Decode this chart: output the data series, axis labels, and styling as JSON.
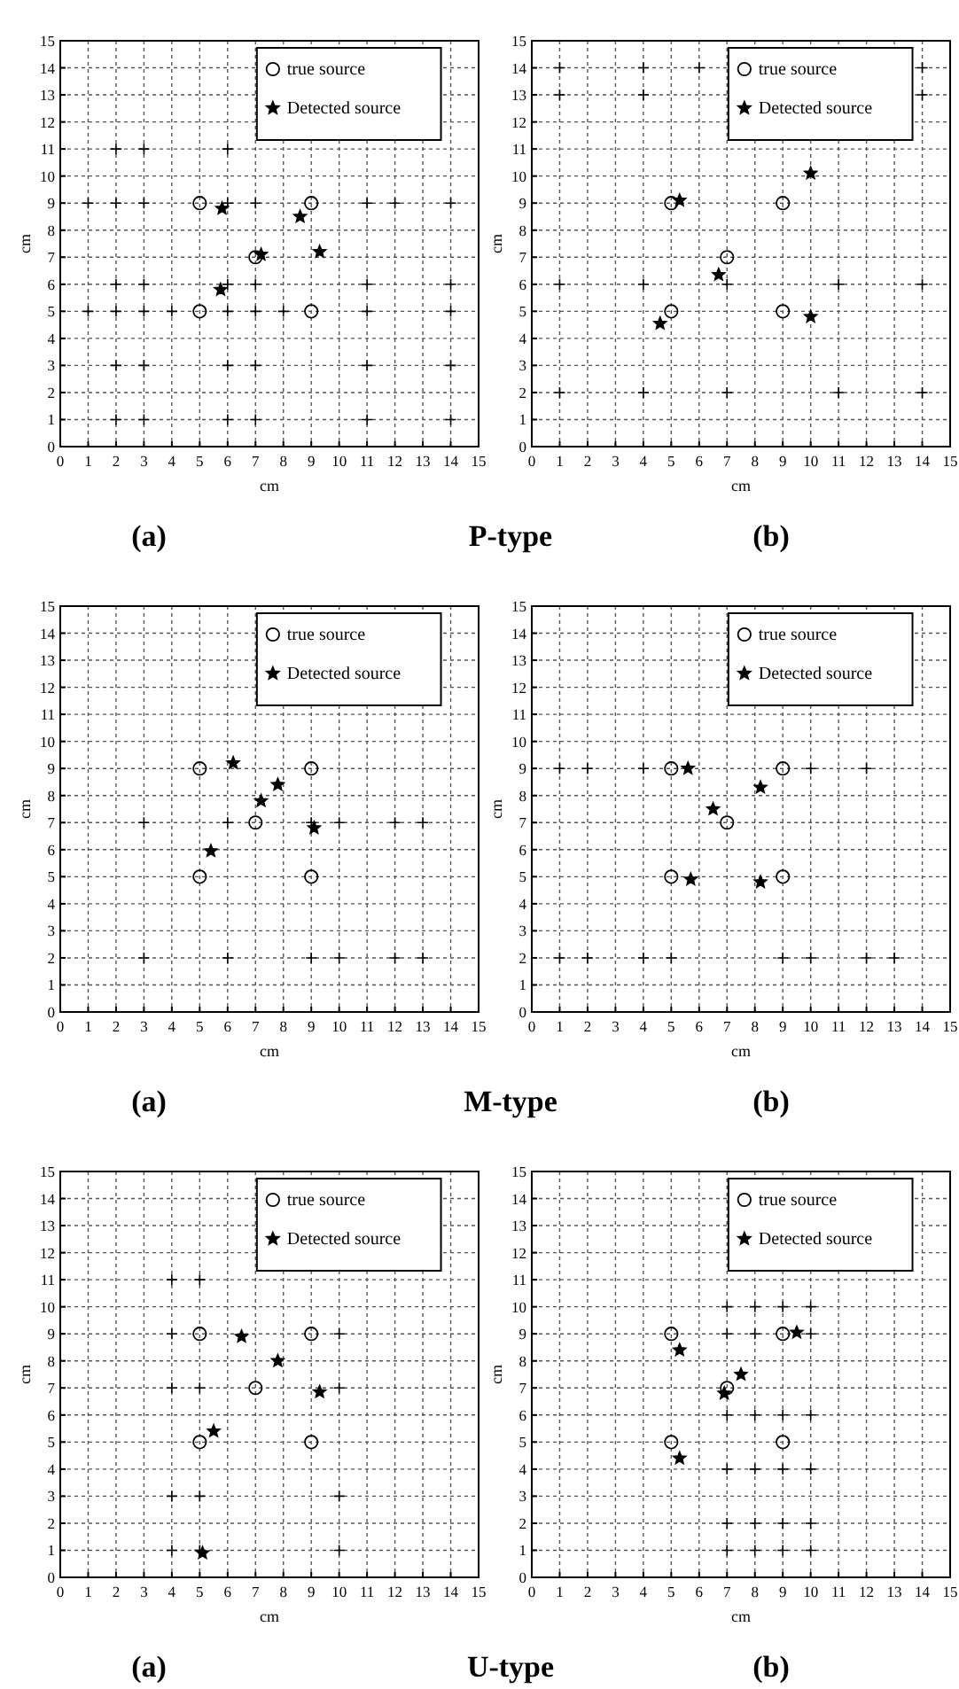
{
  "chart_data": [
    {
      "type": "scatter",
      "title": "(a)",
      "xlabel": "cm",
      "ylabel": "cm",
      "annotations": [
        "P-type"
      ],
      "xlim": [
        0,
        15
      ],
      "ylim": [
        0,
        15
      ],
      "xticks": [
        0,
        1,
        2,
        3,
        4,
        5,
        6,
        7,
        8,
        9,
        10,
        11,
        12,
        13,
        14,
        15
      ],
      "yticks": [
        0,
        1,
        2,
        3,
        4,
        5,
        6,
        7,
        8,
        9,
        10,
        11,
        12,
        13,
        14,
        15
      ],
      "grid": true,
      "legend": "top right",
      "series": [
        {
          "name": "true source",
          "color": "#000000",
          "marker": "circle",
          "x": [
            5,
            9,
            7,
            5,
            9
          ],
          "values": [
            9,
            9,
            7,
            5,
            5
          ]
        },
        {
          "name": "Detected source",
          "color": "#000000",
          "marker": "star",
          "x": [
            5.8,
            8.6,
            7.2,
            9.3,
            5.75
          ],
          "values": [
            8.8,
            8.5,
            7.1,
            7.2,
            5.8
          ]
        },
        {
          "color": "#000000",
          "marker": "cross",
          "x": [
            2,
            3,
            6,
            1,
            2,
            3,
            6,
            7,
            11,
            12,
            14,
            2,
            3,
            6,
            7,
            11,
            14,
            1,
            2,
            3,
            4,
            6,
            7,
            8,
            11,
            14,
            2,
            3,
            6,
            7,
            11,
            14,
            2,
            3,
            6,
            7,
            11,
            14
          ],
          "values": [
            11,
            11,
            11,
            9,
            9,
            9,
            9,
            9,
            9,
            9,
            9,
            6,
            6,
            6,
            6,
            6,
            6,
            5,
            5,
            5,
            5,
            5,
            5,
            5,
            5,
            5,
            3,
            3,
            3,
            3,
            3,
            3,
            1,
            1,
            1,
            1,
            1,
            1
          ]
        }
      ]
    },
    {
      "type": "scatter",
      "title": "(b)",
      "xlabel": "cm",
      "ylabel": "cm",
      "xlim": [
        0,
        15
      ],
      "ylim": [
        0,
        15
      ],
      "xticks": [
        0,
        1,
        2,
        3,
        4,
        5,
        6,
        7,
        8,
        9,
        10,
        11,
        12,
        13,
        14,
        15
      ],
      "yticks": [
        0,
        1,
        2,
        3,
        4,
        5,
        6,
        7,
        8,
        9,
        10,
        11,
        12,
        13,
        14,
        15
      ],
      "grid": true,
      "legend": "top right",
      "series": [
        {
          "name": "true source",
          "color": "#000000",
          "marker": "circle",
          "x": [
            5,
            9,
            7,
            5,
            9
          ],
          "values": [
            9,
            9,
            7,
            5,
            5
          ]
        },
        {
          "name": "Detected source",
          "color": "#000000",
          "marker": "star",
          "x": [
            5.3,
            10,
            6.7,
            4.6,
            10
          ],
          "values": [
            9.1,
            10.1,
            6.35,
            4.55,
            4.8
          ]
        },
        {
          "color": "#000000",
          "marker": "cross",
          "x": [
            1,
            4,
            6,
            14,
            1,
            4,
            14,
            1,
            4,
            7,
            11,
            14,
            1,
            4,
            7,
            11,
            14
          ],
          "values": [
            14,
            14,
            14,
            14,
            13,
            13,
            13,
            6,
            6,
            6,
            6,
            6,
            2,
            2,
            2,
            2,
            2
          ]
        }
      ]
    },
    {
      "type": "scatter",
      "title": "(a)",
      "xlabel": "cm",
      "ylabel": "cm",
      "annotations": [
        "M-type"
      ],
      "xlim": [
        0,
        15
      ],
      "ylim": [
        0,
        15
      ],
      "xticks": [
        0,
        1,
        2,
        3,
        4,
        5,
        6,
        7,
        8,
        9,
        10,
        11,
        12,
        13,
        14,
        15
      ],
      "yticks": [
        0,
        1,
        2,
        3,
        4,
        5,
        6,
        7,
        8,
        9,
        10,
        11,
        12,
        13,
        14,
        15
      ],
      "grid": true,
      "legend": "top right",
      "series": [
        {
          "name": "true source",
          "color": "#000000",
          "marker": "circle",
          "x": [
            5,
            9,
            7,
            5,
            9
          ],
          "values": [
            9,
            9,
            7,
            5,
            5
          ]
        },
        {
          "name": "Detected source",
          "color": "#000000",
          "marker": "star",
          "x": [
            6.2,
            7.8,
            7.2,
            9.1,
            5.4
          ],
          "values": [
            9.2,
            8.4,
            7.8,
            6.8,
            5.95
          ]
        },
        {
          "color": "#000000",
          "marker": "cross",
          "x": [
            3,
            6,
            9,
            10,
            12,
            13,
            3,
            6,
            9,
            10,
            12,
            13
          ],
          "values": [
            7,
            7,
            7,
            7,
            7,
            7,
            2,
            2,
            2,
            2,
            2,
            2
          ]
        }
      ]
    },
    {
      "type": "scatter",
      "title": "(b)",
      "xlabel": "cm",
      "ylabel": "cm",
      "xlim": [
        0,
        15
      ],
      "ylim": [
        0,
        15
      ],
      "xticks": [
        0,
        1,
        2,
        3,
        4,
        5,
        6,
        7,
        8,
        9,
        10,
        11,
        12,
        13,
        14,
        15
      ],
      "yticks": [
        0,
        1,
        2,
        3,
        4,
        5,
        6,
        7,
        8,
        9,
        10,
        11,
        12,
        13,
        14,
        15
      ],
      "grid": true,
      "legend": "top right",
      "series": [
        {
          "name": "true source",
          "color": "#000000",
          "marker": "circle",
          "x": [
            5,
            9,
            7,
            5,
            9
          ],
          "values": [
            9,
            9,
            7,
            5,
            5
          ]
        },
        {
          "name": "Detected source",
          "color": "#000000",
          "marker": "star",
          "x": [
            5.6,
            8.2,
            6.5,
            5.7,
            8.2
          ],
          "values": [
            9,
            8.3,
            7.5,
            4.9,
            4.8
          ]
        },
        {
          "color": "#000000",
          "marker": "cross",
          "x": [
            1,
            2,
            4,
            10,
            12,
            1,
            2,
            4,
            5,
            9,
            10,
            12,
            13
          ],
          "values": [
            9,
            9,
            9,
            9,
            9,
            2,
            2,
            2,
            2,
            2,
            2,
            2,
            2
          ]
        }
      ]
    },
    {
      "type": "scatter",
      "title": "(a)",
      "xlabel": "cm",
      "ylabel": "cm",
      "annotations": [
        "U-type"
      ],
      "xlim": [
        0,
        15
      ],
      "ylim": [
        0,
        15
      ],
      "xticks": [
        0,
        1,
        2,
        3,
        4,
        5,
        6,
        7,
        8,
        9,
        10,
        11,
        12,
        13,
        14,
        15
      ],
      "yticks": [
        0,
        1,
        2,
        3,
        4,
        5,
        6,
        7,
        8,
        9,
        10,
        11,
        12,
        13,
        14,
        15
      ],
      "grid": true,
      "legend": "top right",
      "series": [
        {
          "name": "true source",
          "color": "#000000",
          "marker": "circle",
          "x": [
            5,
            9,
            7,
            5,
            9
          ],
          "values": [
            9,
            9,
            7,
            5,
            5
          ]
        },
        {
          "name": "Detected source",
          "color": "#000000",
          "marker": "star",
          "x": [
            6.5,
            7.8,
            9.3,
            5.5,
            5.1
          ],
          "values": [
            8.9,
            8,
            6.85,
            5.4,
            0.9
          ]
        },
        {
          "color": "#000000",
          "marker": "cross",
          "x": [
            4,
            5,
            4,
            10,
            4,
            5,
            10,
            4,
            5,
            10,
            4,
            5,
            10
          ],
          "values": [
            11,
            11,
            9,
            9,
            7,
            7,
            7,
            3,
            3,
            3,
            1,
            1,
            1
          ]
        }
      ]
    },
    {
      "type": "scatter",
      "title": "(b)",
      "xlabel": "cm",
      "ylabel": "cm",
      "xlim": [
        0,
        15
      ],
      "ylim": [
        0,
        15
      ],
      "xticks": [
        0,
        1,
        2,
        3,
        4,
        5,
        6,
        7,
        8,
        9,
        10,
        11,
        12,
        13,
        14,
        15
      ],
      "yticks": [
        0,
        1,
        2,
        3,
        4,
        5,
        6,
        7,
        8,
        9,
        10,
        11,
        12,
        13,
        14,
        15
      ],
      "grid": true,
      "legend": "top right",
      "series": [
        {
          "name": "true source",
          "color": "#000000",
          "marker": "circle",
          "x": [
            5,
            9,
            7,
            5,
            9
          ],
          "values": [
            9,
            9,
            7,
            5,
            5
          ]
        },
        {
          "name": "Detected source",
          "color": "#000000",
          "marker": "star",
          "x": [
            5.3,
            7.5,
            9.5,
            5.3,
            6.9
          ],
          "values": [
            8.4,
            7.5,
            9.05,
            4.4,
            6.8
          ]
        },
        {
          "color": "#000000",
          "marker": "cross",
          "x": [
            7,
            8,
            9,
            10,
            7,
            8,
            10,
            7,
            8,
            9,
            10,
            7,
            8,
            9,
            10,
            7,
            8,
            9,
            10,
            7,
            8,
            9,
            10
          ],
          "values": [
            10,
            10,
            10,
            10,
            9,
            9,
            9,
            6,
            6,
            6,
            6,
            4,
            4,
            4,
            4,
            2,
            2,
            2,
            2,
            1,
            1,
            1,
            1
          ]
        }
      ]
    }
  ]
}
